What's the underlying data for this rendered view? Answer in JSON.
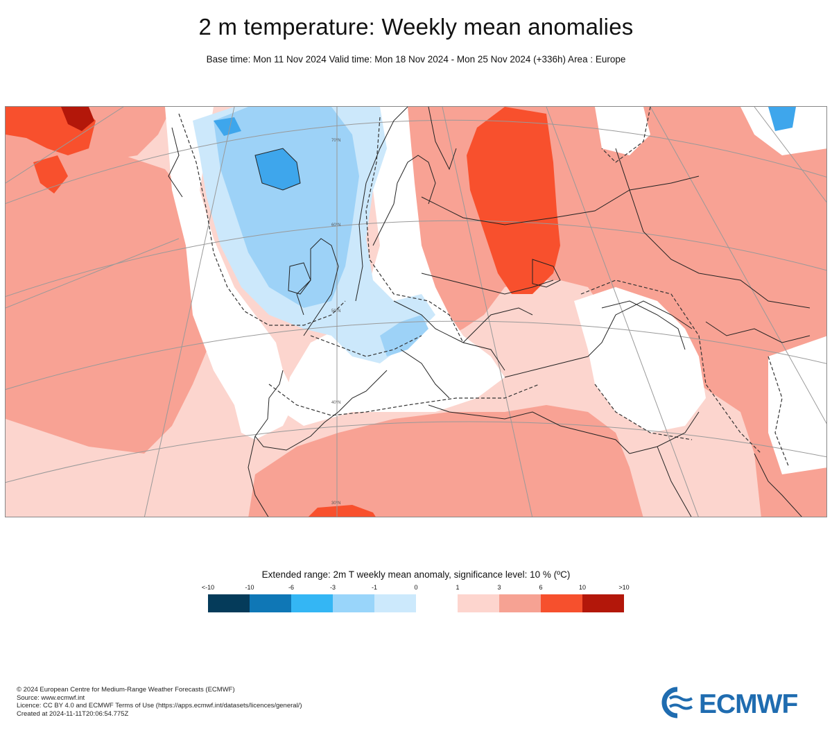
{
  "header": {
    "title": "2 m temperature: Weekly mean anomalies",
    "subtitle": "Base time: Mon 11 Nov 2024 Valid time: Mon 18 Nov 2024 - Mon 25 Nov 2024 (+336h) Area : Europe"
  },
  "map": {
    "lat_labels": [
      "70°N",
      "60°N",
      "50°N",
      "40°N",
      "30°N"
    ],
    "colors": {
      "strong_warm": "#f8502d",
      "warm": "#f8a294",
      "mild_warm": "#fcd5ce",
      "neutral": "#ffffff",
      "mild_cold": "#cce8fb",
      "cold": "#9dd2f7",
      "colder": "#3ea6ec"
    }
  },
  "colorbar": {
    "title": "Extended range: 2m T weekly mean anomaly, significance level: 10 % (ºC)",
    "labels": [
      "<-10",
      "-10",
      "-6",
      "-3",
      "-1",
      "0",
      "1",
      "3",
      "6",
      "10",
      ">10"
    ],
    "colors": [
      "#053b5a",
      "#0f77b6",
      "#34b6f4",
      "#99d5fa",
      "#cce9fc",
      "#ffffff",
      "#fdd5ce",
      "#f6a293",
      "#f6502d",
      "#b3170a",
      "#5a0b03"
    ]
  },
  "footer": {
    "lines": [
      "© 2024 European Centre for Medium-Range Weather Forecasts (ECMWF)",
      "Source: www.ecmwf.int",
      "Licence: CC BY 4.0 and ECMWF Terms of Use (https://apps.ecmwf.int/datasets/licences/general/)",
      "Created at 2024-11-11T20:06:54.775Z"
    ]
  },
  "logo": {
    "text": "ECMWF",
    "color": "#1f6cb0"
  }
}
